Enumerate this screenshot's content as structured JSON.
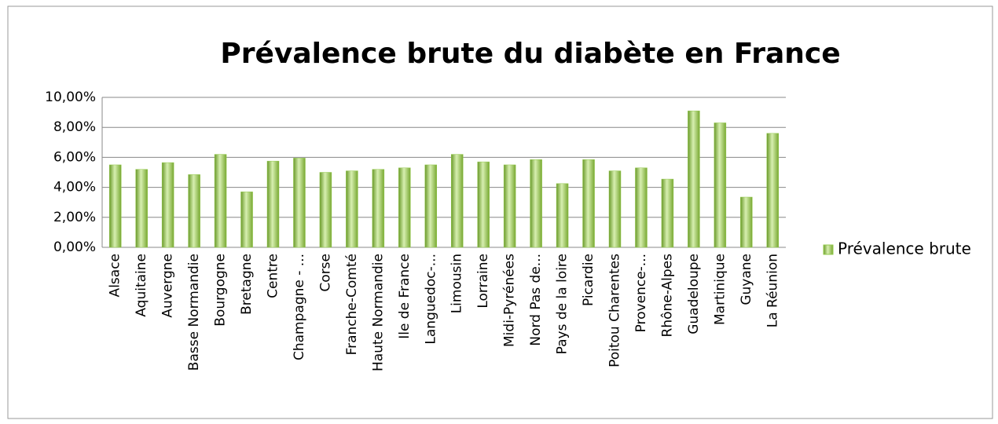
{
  "chart_data": {
    "type": "bar",
    "title": "Prévalence brute du diabète en France",
    "categories": [
      "Alsace",
      "Aquitaine",
      "Auvergne",
      "Basse Normandie",
      "Bourgogne",
      "Bretagne",
      "Centre",
      "Champagne - ...",
      "Corse",
      "Franche-Comté",
      "Haute Normandie",
      "Ile de France",
      "Languedoc-...",
      "Limousin",
      "Lorraine",
      "Midi-Pyrénées",
      "Nord Pas de...",
      "Pays de la loire",
      "Picardie",
      "Poitou Charentes",
      "Provence-...",
      "Rhône-Alpes",
      "Guadeloupe",
      "Martinique",
      "Guyane",
      "La Réunion"
    ],
    "series": [
      {
        "name": "Prévalence brute",
        "color": "#92c94a",
        "values": [
          5.5,
          5.2,
          5.65,
          4.85,
          6.2,
          3.7,
          5.75,
          5.95,
          5.0,
          5.1,
          5.2,
          5.3,
          5.5,
          6.2,
          5.7,
          5.5,
          5.85,
          4.25,
          5.85,
          5.1,
          5.3,
          4.55,
          9.1,
          8.3,
          3.35,
          7.6
        ]
      }
    ],
    "ylim": [
      0,
      10
    ],
    "yticks": [
      {
        "value": 0,
        "label": "0,00%"
      },
      {
        "value": 2,
        "label": "2,00%"
      },
      {
        "value": 4,
        "label": "4,00%"
      },
      {
        "value": 6,
        "label": "6,00%"
      },
      {
        "value": 8,
        "label": "8,00%"
      },
      {
        "value": 10,
        "label": "10,00%"
      }
    ],
    "grid": true,
    "legend": "right"
  }
}
